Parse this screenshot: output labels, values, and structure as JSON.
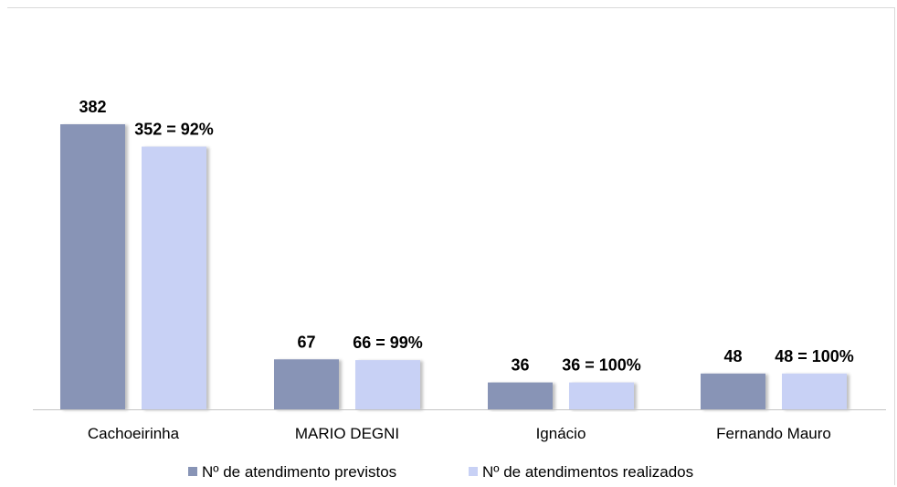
{
  "colors": {
    "previstos": "#8894b6",
    "realizados": "#c8d1f5",
    "axis": "#c4c4c4"
  },
  "chart_data": {
    "type": "bar",
    "categories": [
      "Cachoeirinha",
      "MARIO DEGNI",
      "Ignácio",
      "Fernando Mauro"
    ],
    "series": [
      {
        "name": "Nº de atendimento previstos",
        "values": [
          382,
          67,
          36,
          48
        ],
        "labels": [
          "382",
          "67",
          "36",
          "48"
        ]
      },
      {
        "name": "Nº de atendimentos realizados",
        "values": [
          352,
          66,
          36,
          48
        ],
        "labels": [
          "352 = 92%",
          "66 = 99%",
          "36 = 100%",
          "48 = 100%"
        ]
      }
    ],
    "ylim": [
      0,
      400
    ],
    "grid": false,
    "legend_position": "bottom"
  }
}
